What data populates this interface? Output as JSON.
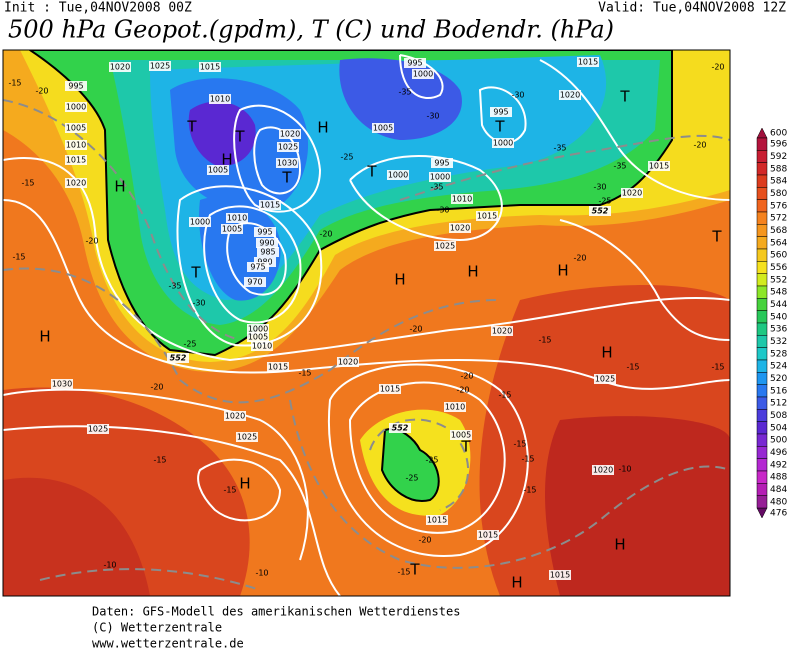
{
  "header": {
    "init": "Init : Tue,04NOV2008 00Z",
    "valid": "Valid: Tue,04NOV2008 12Z",
    "title": "500 hPa Geopot.(gpdm), T (C) und Bodendr. (hPa)"
  },
  "colorbar": {
    "levels": [
      600,
      596,
      592,
      588,
      584,
      580,
      576,
      572,
      568,
      564,
      560,
      556,
      552,
      548,
      544,
      540,
      536,
      532,
      528,
      524,
      520,
      516,
      512,
      508,
      504,
      500,
      496,
      492,
      488,
      484,
      480,
      476
    ],
    "colors": [
      "#a0103c",
      "#b4143c",
      "#c81e32",
      "#d22828",
      "#dc3c1e",
      "#e6501e",
      "#f0641e",
      "#f5821e",
      "#f5961e",
      "#f5aa1e",
      "#f5c81e",
      "#f5e11e",
      "#d2eb1e",
      "#8ce628",
      "#46d23c",
      "#28c85a",
      "#1ec882",
      "#1ec8aa",
      "#1ec8c8",
      "#1eb4e6",
      "#1e96f0",
      "#2878f0",
      "#3c5ae6",
      "#4b3cdc",
      "#5a28d2",
      "#7828d2",
      "#9628d2",
      "#b428d2",
      "#c828c8",
      "#b41eb4",
      "#961e96",
      "#640a64"
    ]
  },
  "map_labels": {
    "centers": [
      "H",
      "H",
      "H",
      "H",
      "H",
      "H",
      "H",
      "H",
      "H",
      "H",
      "T",
      "T",
      "H",
      "T",
      "T",
      "T",
      "T",
      "T",
      "T",
      "T",
      "T"
    ],
    "isobars": [
      995,
      1000,
      1005,
      1010,
      1015,
      1020,
      1020,
      1025,
      1015,
      1010,
      1020,
      1025,
      1030,
      1005,
      1015,
      1000,
      1010,
      1005,
      995,
      990,
      985,
      980,
      975,
      970,
      1000,
      1005,
      1010,
      995,
      1000,
      1005,
      1000,
      995,
      1000,
      1010,
      1015,
      1020,
      1025,
      995,
      1000,
      1020,
      1015,
      1015,
      1020,
      1015,
      1020,
      1020,
      1025,
      1030,
      1025,
      1020,
      1025,
      1015,
      1010,
      1005,
      1015,
      1015,
      1015,
      1020
    ],
    "temperatures": [
      -15,
      -20,
      -15,
      -20,
      -15,
      -25,
      -30,
      -35,
      -20,
      -15,
      -20,
      -25,
      -35,
      -30,
      -35,
      -30,
      -30,
      -35,
      -35,
      -30,
      -25,
      -20,
      -15,
      -15,
      -20,
      -20,
      -20,
      -15,
      -15,
      -15,
      -15,
      -25,
      -20,
      -25,
      -10,
      -10,
      -15,
      -15,
      -15,
      -10,
      -20,
      -20,
      -15
    ],
    "heights": [
      552,
      552,
      552
    ]
  },
  "footer": {
    "line1": "Daten: GFS-Modell des amerikanischen Wetterdienstes",
    "line2": "(C) Wetterzentrale",
    "line3": "www.wetterzentrale.de"
  }
}
